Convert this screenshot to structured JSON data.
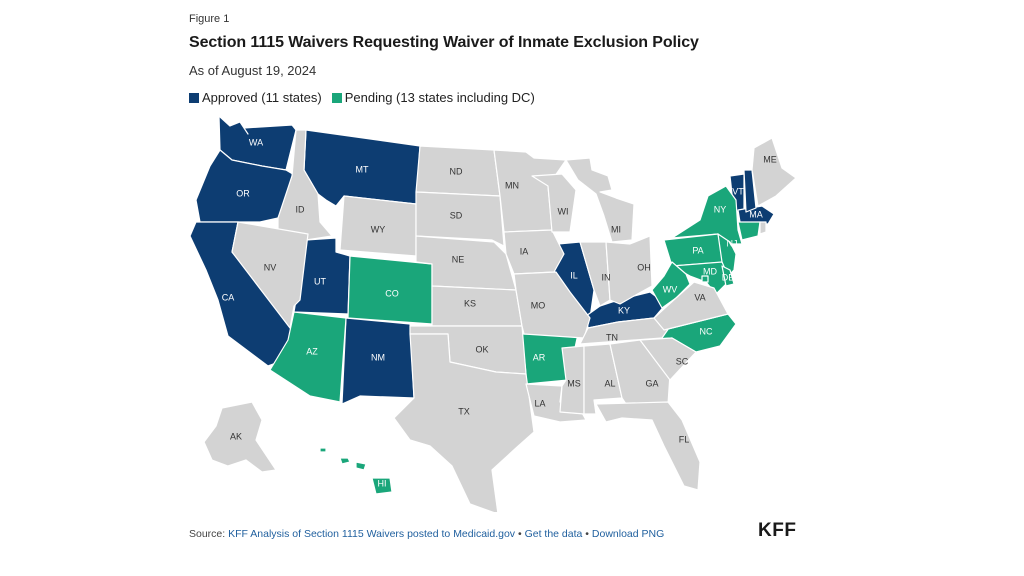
{
  "figure_label": "Figure 1",
  "title": "Section 1115 Waivers Requesting Waiver of Inmate Exclusion Policy",
  "subtitle": "As of August 19, 2024",
  "colors": {
    "approved": "#0d3d72",
    "pending": "#1aa67a",
    "none": "#d3d3d3"
  },
  "legend": {
    "approved": "Approved (11 states)",
    "pending": "Pending (13 states including DC)"
  },
  "footer": {
    "source_prefix": "Source: ",
    "source_link": "KFF Analysis of Section 1115 Waivers posted to Medicaid.gov",
    "sep1": " • ",
    "get_data": "Get the data",
    "sep2": " • ",
    "download": "Download PNG"
  },
  "logo": "KFF",
  "map": {
    "states": [
      {
        "abbr": "WA",
        "status": "approved"
      },
      {
        "abbr": "OR",
        "status": "approved"
      },
      {
        "abbr": "CA",
        "status": "approved"
      },
      {
        "abbr": "MT",
        "status": "approved"
      },
      {
        "abbr": "UT",
        "status": "approved"
      },
      {
        "abbr": "NM",
        "status": "approved"
      },
      {
        "abbr": "IL",
        "status": "approved"
      },
      {
        "abbr": "KY",
        "status": "approved"
      },
      {
        "abbr": "VT",
        "status": "approved"
      },
      {
        "abbr": "MA",
        "status": "approved"
      },
      {
        "abbr": "NH",
        "status": "approved"
      },
      {
        "abbr": "AZ",
        "status": "pending"
      },
      {
        "abbr": "CO",
        "status": "pending"
      },
      {
        "abbr": "AR",
        "status": "pending"
      },
      {
        "abbr": "NY",
        "status": "pending"
      },
      {
        "abbr": "PA",
        "status": "pending"
      },
      {
        "abbr": "NJ",
        "status": "pending"
      },
      {
        "abbr": "MD",
        "status": "pending"
      },
      {
        "abbr": "DE",
        "status": "pending"
      },
      {
        "abbr": "WV",
        "status": "pending"
      },
      {
        "abbr": "NC",
        "status": "pending"
      },
      {
        "abbr": "CT",
        "status": "pending"
      },
      {
        "abbr": "HI",
        "status": "pending"
      },
      {
        "abbr": "DC",
        "status": "pending"
      },
      {
        "abbr": "ID",
        "status": "none"
      },
      {
        "abbr": "NV",
        "status": "none"
      },
      {
        "abbr": "WY",
        "status": "none"
      },
      {
        "abbr": "ND",
        "status": "none"
      },
      {
        "abbr": "SD",
        "status": "none"
      },
      {
        "abbr": "NE",
        "status": "none"
      },
      {
        "abbr": "KS",
        "status": "none"
      },
      {
        "abbr": "OK",
        "status": "none"
      },
      {
        "abbr": "TX",
        "status": "none"
      },
      {
        "abbr": "MN",
        "status": "none"
      },
      {
        "abbr": "IA",
        "status": "none"
      },
      {
        "abbr": "MO",
        "status": "none"
      },
      {
        "abbr": "LA",
        "status": "none"
      },
      {
        "abbr": "WI",
        "status": "none"
      },
      {
        "abbr": "MI",
        "status": "none"
      },
      {
        "abbr": "IN",
        "status": "none"
      },
      {
        "abbr": "OH",
        "status": "none"
      },
      {
        "abbr": "TN",
        "status": "none"
      },
      {
        "abbr": "MS",
        "status": "none"
      },
      {
        "abbr": "AL",
        "status": "none"
      },
      {
        "abbr": "GA",
        "status": "none"
      },
      {
        "abbr": "FL",
        "status": "none"
      },
      {
        "abbr": "SC",
        "status": "none"
      },
      {
        "abbr": "VA",
        "status": "none"
      },
      {
        "abbr": "ME",
        "status": "none"
      },
      {
        "abbr": "RI",
        "status": "none"
      },
      {
        "abbr": "AK",
        "status": "none"
      }
    ]
  }
}
